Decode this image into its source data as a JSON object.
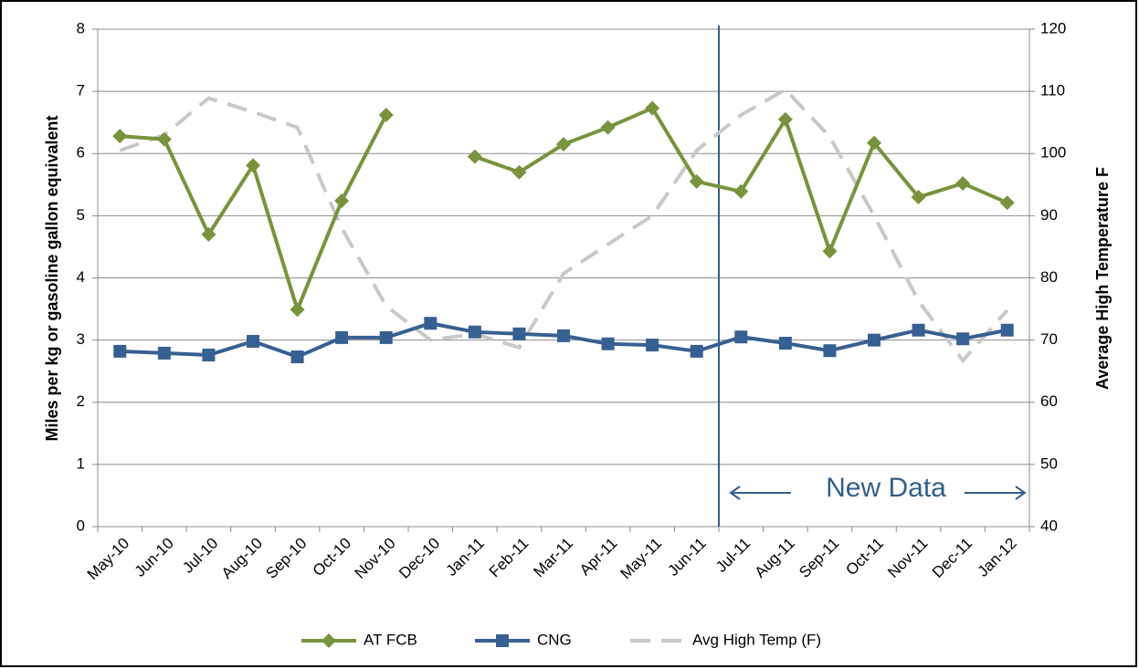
{
  "chart_data": {
    "type": "line",
    "y_label": "Miles per kg or gasoline gallon equivalent",
    "y2_label": "Average High Temperature F",
    "annotation": "New Data",
    "categories": [
      "May-10",
      "Jun-10",
      "Jul-10",
      "Aug-10",
      "Sep-10",
      "Oct-10",
      "Nov-10",
      "Dec-10",
      "Jan-11",
      "Feb-11",
      "Mar-11",
      "Apr-11",
      "May-11",
      "Jun-11",
      "Jul-11",
      "Aug-11",
      "Sep-11",
      "Oct-11",
      "Nov-11",
      "Dec-11",
      "Jan-12"
    ],
    "series": [
      {
        "name": "AT FCB",
        "color": "#77933c",
        "marker": "diamond",
        "values": [
          6.28,
          6.23,
          4.7,
          5.81,
          3.49,
          5.24,
          6.62,
          null,
          5.95,
          5.7,
          6.15,
          6.42,
          6.73,
          5.55,
          5.39,
          6.55,
          4.43,
          6.17,
          5.3,
          5.52,
          5.21
        ]
      },
      {
        "name": "CNG",
        "color": "#376092",
        "marker": "square",
        "values": [
          2.82,
          2.79,
          2.76,
          2.98,
          2.73,
          3.04,
          3.04,
          3.27,
          3.13,
          3.1,
          3.07,
          2.94,
          2.92,
          2.82,
          3.05,
          2.95,
          2.83,
          3.0,
          3.16,
          3.02,
          3.16
        ]
      },
      {
        "name": "Avg High Temp (F)",
        "color": "#c8c8c8",
        "dashed": true,
        "axis": "y2",
        "values": [
          100.5,
          103,
          108.9,
          106.7,
          104.2,
          88,
          75.5,
          70,
          71,
          68.8,
          80.7,
          85.4,
          90,
          100.5,
          106.2,
          110.3,
          102.7,
          90,
          76.3,
          66.7,
          74.8
        ]
      }
    ],
    "ylim": [
      0,
      8
    ],
    "yticks": [
      0,
      1,
      2,
      3,
      4,
      5,
      6,
      7,
      8
    ],
    "y2lim": [
      40,
      120
    ],
    "y2ticks": [
      40,
      50,
      60,
      70,
      80,
      90,
      100,
      110,
      120
    ],
    "grid": true
  }
}
